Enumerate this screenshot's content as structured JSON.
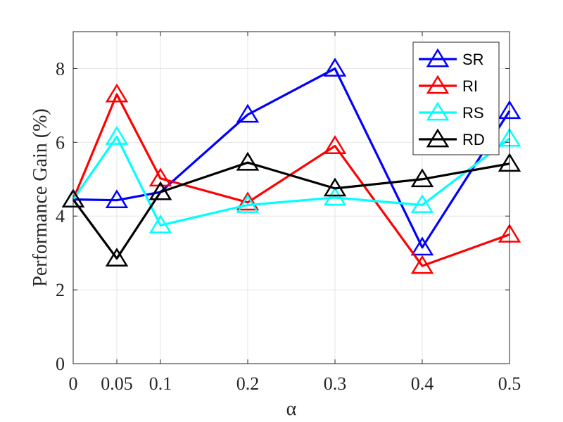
{
  "chart_data": {
    "type": "line",
    "xlabel": "α",
    "ylabel": "Performance Gain (%)",
    "x": [
      0,
      0.05,
      0.1,
      0.2,
      0.3,
      0.4,
      0.5
    ],
    "x_tick_labels": [
      "0",
      "0.05",
      "0.1",
      "0.2",
      "0.3",
      "0.4",
      "0.5"
    ],
    "xlim": [
      0,
      0.5
    ],
    "ylim": [
      0,
      9
    ],
    "y_ticks": [
      0,
      2,
      4,
      6,
      8
    ],
    "y_tick_labels": [
      "0",
      "2",
      "4",
      "6",
      "8"
    ],
    "grid": true,
    "legend_position": "top-right",
    "marker": "triangle-open",
    "series": [
      {
        "name": "SR",
        "color": "#0000ff",
        "values": [
          4.45,
          4.43,
          4.65,
          6.75,
          8.0,
          3.15,
          6.85
        ]
      },
      {
        "name": "RI",
        "color": "#ff0000",
        "values": [
          4.45,
          7.3,
          5.02,
          4.37,
          5.9,
          2.65,
          3.5
        ]
      },
      {
        "name": "RS",
        "color": "#00ffff",
        "values": [
          4.45,
          6.15,
          3.75,
          4.3,
          4.5,
          4.3,
          6.1
        ]
      },
      {
        "name": "RD",
        "color": "#000000",
        "values": [
          4.45,
          2.85,
          4.65,
          5.45,
          4.75,
          5.0,
          5.42
        ]
      }
    ]
  }
}
